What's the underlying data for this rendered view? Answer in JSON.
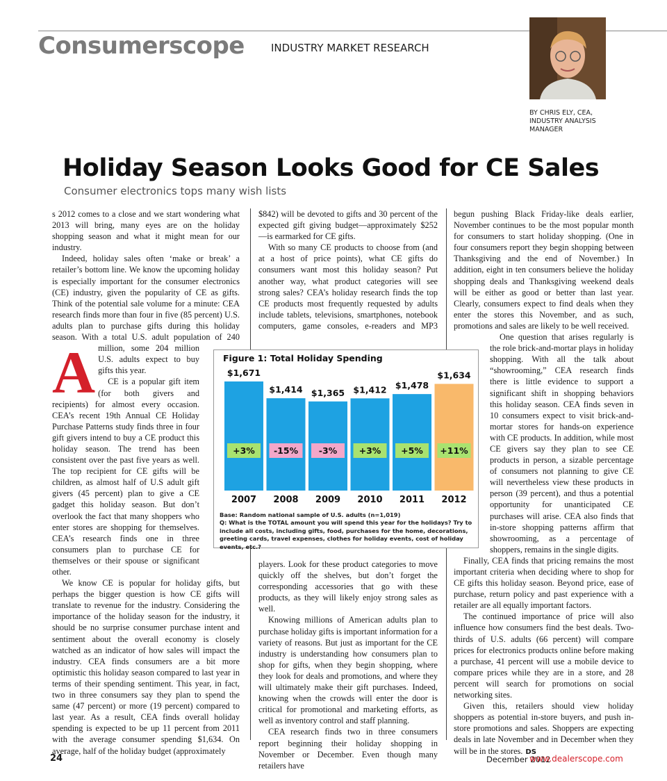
{
  "header": {
    "brand": "Consumerscope",
    "section": "INDUSTRY MARKET RESEARCH",
    "byline": "BY CHRIS ELY, CEA, INDUSTRY ANALYSIS MANAGER"
  },
  "headline": "Holiday Season Looks Good for CE Sales",
  "subheadline": "Consumer electronics tops many wish lists",
  "columns": [
    {
      "drop_cap": "A",
      "paragraphs": [
        "s 2012 comes to a close and we start wondering what 2013 will bring, many eyes are on the holiday shopping season and what it might mean for our industry.",
        "Indeed, holiday sales often ‘make or break’ a retailer’s bottom line. We know the upcoming holiday is especially important for the consumer electronics (CE) industry, given the popularity of CE as gifts. Think of the potential sale volume for a minute: CEA research finds more than four in five (85 percent) U.S. adults plan to purchase gifts during this holiday season. With a total U.S. adult population of 240 million, some 204 million U.S. adults expect to buy gifts this year.",
        "CE is a popular gift item (for both givers and recipients) for almost every occasion. CEA’s recent 19th Annual CE Holiday Purchase Patterns study finds three in four gift givers intend to buy a CE product this holiday season. The trend has been consistent over the past five years as well. The top recipient for CE gifts will be children, as almost half of U.S adult gift givers (45 percent) plan to give a CE gadget this holiday season. But don’t overlook the fact that many shoppers who enter stores are shopping for themselves. CEA’s research finds one in three consumers plan to purchase CE for themselves or their spouse or significant other.",
        "We know CE is popular for holiday gifts, but perhaps the bigger question is how CE gifts will translate to revenue for the industry. Considering the importance of the holiday season for the industry, it should be no surprise consumer purchase intent and sentiment about the overall economy is closely watched as an indicator of how sales will impact the industry. CEA finds consumers are a bit more optimistic this holiday season compared to last year in terms of their spending sentiment. This year, in fact, two in three consumers say they plan to spend the same (47 percent) or more (19 percent) compared to last year. As a result, CEA finds overall holiday spending is expected to be up 11 percent from 2011 with the average consumer spending $1,634. On average, half of the holiday budget (approximately"
      ]
    },
    {
      "paragraphs": [
        "$842) will be devoted to gifts and 30 percent of the expected gift giving budget—approximately $252—is earmarked for CE gifts.",
        "With so many CE products to choose from (and at a host of price points), what CE gifts do consumers want most this holiday season? Put another way, what product categories will see strong sales? CEA’s holiday research finds the top CE products most frequently requested by adults include tablets, televisions, smartphones, notebook computers, game consoles, e-readers and MP3 players. Look for these product categories to move quickly off the shelves, but don’t forget the corresponding accessories that go with these products, as they will likely enjoy strong sales as well.",
        "Knowing millions of American adults plan to purchase holiday gifts is important information for a variety of reasons. But just as important for the CE industry is understanding how consumers plan to shop for gifts, when they begin shopping, where they look for deals and promotions, and where they will ultimately make their gift purchases. Indeed, knowing when the crowds will enter the door is critical for promotional and marketing efforts, as well as inventory control and staff planning.",
        "CEA research finds two in three consumers report beginning their holiday shopping in November or December. Even though many retailers have"
      ]
    },
    {
      "paragraphs": [
        "begun pushing Black Friday-like deals earlier, November continues to be the most popular month for consumers to start holiday shopping. (One in four consumers report they begin shopping between Thanksgiving and the end of November.) In addition, eight in ten consumers believe the holiday shopping deals and Thanksgiving weekend deals will be either as good or better than last year. Clearly, consumers expect to find deals when they enter the stores this November, and as such, promotions and sales are likely to be well received.",
        "One question that arises regularly is the role brick-and-mortar plays in holiday shopping. With all the talk about “showrooming,” CEA research finds there is little evidence to support a significant shift in shopping behaviors this holiday season. CEA finds seven in 10 consumers expect to visit brick-and-mortar stores for hands-on experience with CE products. In addition, while most CE givers say they plan to see CE products in person, a sizable percentage of consumers not planning to give CE will nevertheless view these products in person (39 percent), and thus a potential opportunity for unanticipated CE purchases will arise. CEA also finds that in-store shopping patterns affirm that showrooming, as a percentage of shoppers, remains in the single digits.",
        "Finally, CEA finds that pricing remains the most important criteria when deciding where to shop for CE gifts this holiday season. Beyond price, ease of purchase, return policy and past experience with a retailer are all equally important factors.",
        "The continued importance of price will also influence how consumers find the best deals. Two-thirds of U.S. adults (66 percent) will compare prices for electronics products online before making a purchase, 41 percent will use a mobile device to compare prices while they are in a store, and 28 percent will search for promotions on social networking sites.",
        "Given this, retailers should view holiday shoppers as potential in-store buyers, and push in-store promotions and sales. Shoppers are expecting deals in late November and in December when they will be in the stores."
      ]
    }
  ],
  "end_mark": "DS",
  "chart_data": {
    "type": "bar",
    "title": "Figure 1: Total Holiday Spending",
    "categories": [
      "2007",
      "2008",
      "2009",
      "2010",
      "2011",
      "2012"
    ],
    "values": [
      1671,
      1414,
      1365,
      1412,
      1478,
      1634
    ],
    "value_labels": [
      "$1,671",
      "$1,414",
      "$1,365",
      "$1,412",
      "$1,478",
      "$1,634"
    ],
    "colors": [
      "#1ea2e2",
      "#1ea2e2",
      "#1ea2e2",
      "#1ea2e2",
      "#1ea2e2",
      "#f9b96b"
    ],
    "changes": [
      "+3%",
      "-15%",
      "-3%",
      "+3%",
      "+5%",
      "+11%"
    ],
    "change_colors": [
      "#a9e26f",
      "#f3a7c9",
      "#f3a7c9",
      "#a9e26f",
      "#a9e26f",
      "#a9e26f"
    ],
    "base_note": "Base: Random national sample of U.S. adults (n=1,019)",
    "question": "Q: What is the TOTAL amount you will spend this year for the holidays? Try to include all costs, including gifts, food, purchases for the home, decorations, greeting cards, travel expenses, clothes for holiday events, cost of holiday events, etc.?"
  },
  "footer": {
    "page": "24",
    "date": "December 2012",
    "url": "www.dealerscope.com"
  }
}
